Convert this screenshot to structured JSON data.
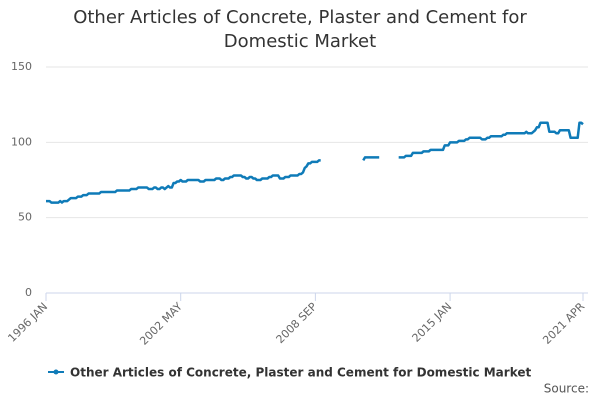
{
  "chart_data": {
    "type": "line",
    "title": "Other Articles of Concrete, Plaster and Cement for Domestic Market",
    "source": "Source:",
    "categories": [
      "1996 JAN",
      null,
      null,
      null,
      null,
      null,
      null,
      null,
      null,
      null,
      null,
      null,
      null,
      null,
      null,
      null,
      null,
      null,
      null,
      null,
      null,
      null,
      null,
      null,
      null,
      null,
      null,
      null,
      null,
      null,
      null,
      null,
      null,
      null,
      null,
      null,
      null,
      null,
      null,
      null,
      null,
      null,
      null,
      null,
      null,
      null,
      null,
      null,
      null,
      null,
      null,
      null,
      null,
      null,
      null,
      null,
      null,
      null,
      null,
      null,
      null,
      null,
      null,
      null,
      null,
      null,
      null,
      null,
      null,
      null,
      null,
      null,
      null,
      null,
      null,
      null,
      "2002 MAY",
      null,
      null,
      null,
      null,
      null,
      null,
      null,
      null,
      null,
      null,
      null,
      null,
      null,
      null,
      null,
      null,
      null,
      null,
      null,
      null,
      null,
      null,
      null,
      null,
      null,
      null,
      null,
      null,
      null,
      null,
      null,
      null,
      null,
      null,
      null,
      null,
      null,
      null,
      null,
      null,
      null,
      null,
      null,
      null,
      null,
      null,
      null,
      null,
      null,
      null,
      null,
      null,
      null,
      null,
      null,
      null,
      null,
      null,
      null,
      null,
      null,
      null,
      null,
      null,
      null,
      null,
      null,
      null,
      null,
      null,
      null,
      null,
      null,
      null,
      null,
      "2008 SEP",
      null,
      null,
      null,
      null,
      null,
      null,
      null,
      null,
      null,
      null,
      null,
      null,
      null,
      null,
      null,
      null,
      null,
      null,
      null,
      null,
      null,
      null,
      null,
      null,
      null,
      null,
      null,
      null,
      null,
      null,
      null,
      null,
      null,
      null,
      null,
      null,
      null,
      null,
      null,
      null,
      null,
      null,
      null,
      null,
      null,
      null,
      null,
      null,
      null,
      null,
      null,
      null,
      null,
      null,
      null,
      null,
      null,
      null,
      null,
      null,
      null,
      null,
      null,
      null,
      null,
      null,
      null,
      null,
      null,
      null,
      null,
      null,
      null,
      null,
      null,
      "2015 JAN",
      null,
      null,
      null,
      null,
      null,
      null,
      null,
      null,
      null,
      null,
      null,
      null,
      null,
      null,
      null,
      null,
      null,
      null,
      null,
      null,
      null,
      null,
      null,
      null,
      null,
      null,
      null,
      null,
      null,
      null,
      null,
      null,
      null,
      null,
      null,
      null,
      null,
      null,
      null,
      null,
      null,
      null,
      null,
      null,
      null,
      null,
      null,
      null,
      null,
      null,
      null,
      null,
      null,
      null,
      null,
      null,
      null,
      null,
      null,
      null,
      null,
      null,
      null,
      null,
      null,
      null,
      null,
      null,
      null,
      null,
      null,
      null,
      null,
      null,
      "2021 APR"
    ],
    "series": [
      {
        "name": "Other Articles of Concrete, Plaster and Cement for Domestic Market",
        "color": "#0f7bb8",
        "values": [
          61,
          61,
          61,
          60,
          60,
          60,
          60,
          60,
          61,
          60,
          61,
          61,
          61,
          62,
          63,
          63,
          63,
          63,
          64,
          64,
          64,
          65,
          65,
          65,
          66,
          66,
          66,
          66,
          66,
          66,
          66,
          67,
          67,
          67,
          67,
          67,
          67,
          67,
          67,
          67,
          68,
          68,
          68,
          68,
          68,
          68,
          68,
          68,
          69,
          69,
          69,
          69,
          70,
          70,
          70,
          70,
          70,
          70,
          69,
          69,
          69,
          70,
          70,
          69,
          69,
          70,
          70,
          69,
          70,
          71,
          70,
          70,
          73,
          73,
          74,
          74,
          75,
          74,
          74,
          74,
          75,
          75,
          75,
          75,
          75,
          75,
          75,
          74,
          74,
          74,
          75,
          75,
          75,
          75,
          75,
          75,
          76,
          76,
          76,
          75,
          75,
          76,
          76,
          76,
          77,
          77,
          78,
          78,
          78,
          78,
          78,
          77,
          77,
          76,
          76,
          77,
          77,
          76,
          76,
          75,
          75,
          75,
          76,
          76,
          76,
          76,
          77,
          77,
          78,
          78,
          78,
          78,
          76,
          76,
          76,
          77,
          77,
          77,
          78,
          78,
          78,
          78,
          78,
          79,
          79,
          80,
          83,
          84,
          86,
          86,
          87,
          87,
          87,
          87,
          88,
          88,
          null,
          null,
          null,
          null,
          null,
          null,
          null,
          null,
          null,
          null,
          null,
          null,
          null,
          null,
          null,
          null,
          null,
          null,
          null,
          null,
          null,
          null,
          null,
          88,
          90,
          90,
          90,
          90,
          90,
          90,
          90,
          90,
          90,
          null,
          null,
          null,
          null,
          null,
          null,
          null,
          null,
          null,
          null,
          90,
          90,
          90,
          90,
          91,
          91,
          91,
          91,
          93,
          93,
          93,
          93,
          93,
          93,
          94,
          94,
          94,
          94,
          95,
          95,
          95,
          95,
          95,
          95,
          95,
          95,
          98,
          98,
          98,
          100,
          100,
          100,
          100,
          100,
          101,
          101,
          101,
          101,
          102,
          102,
          103,
          103,
          103,
          103,
          103,
          103,
          103,
          102,
          102,
          102,
          103,
          103,
          104,
          104,
          104,
          104,
          104,
          104,
          104,
          105,
          105,
          106,
          106,
          106,
          106,
          106,
          106,
          106,
          106,
          106,
          106,
          106,
          107,
          106,
          106,
          106,
          107,
          108,
          110,
          110,
          113,
          113,
          113,
          113,
          113,
          107,
          107,
          107,
          107,
          106,
          106,
          108,
          108,
          108,
          108,
          108,
          108,
          103,
          103,
          103,
          103,
          103,
          113,
          113,
          112
        ]
      }
    ],
    "ylim": [
      0,
      150
    ],
    "yticks": [
      0,
      50,
      100,
      150
    ],
    "grid": true
  }
}
